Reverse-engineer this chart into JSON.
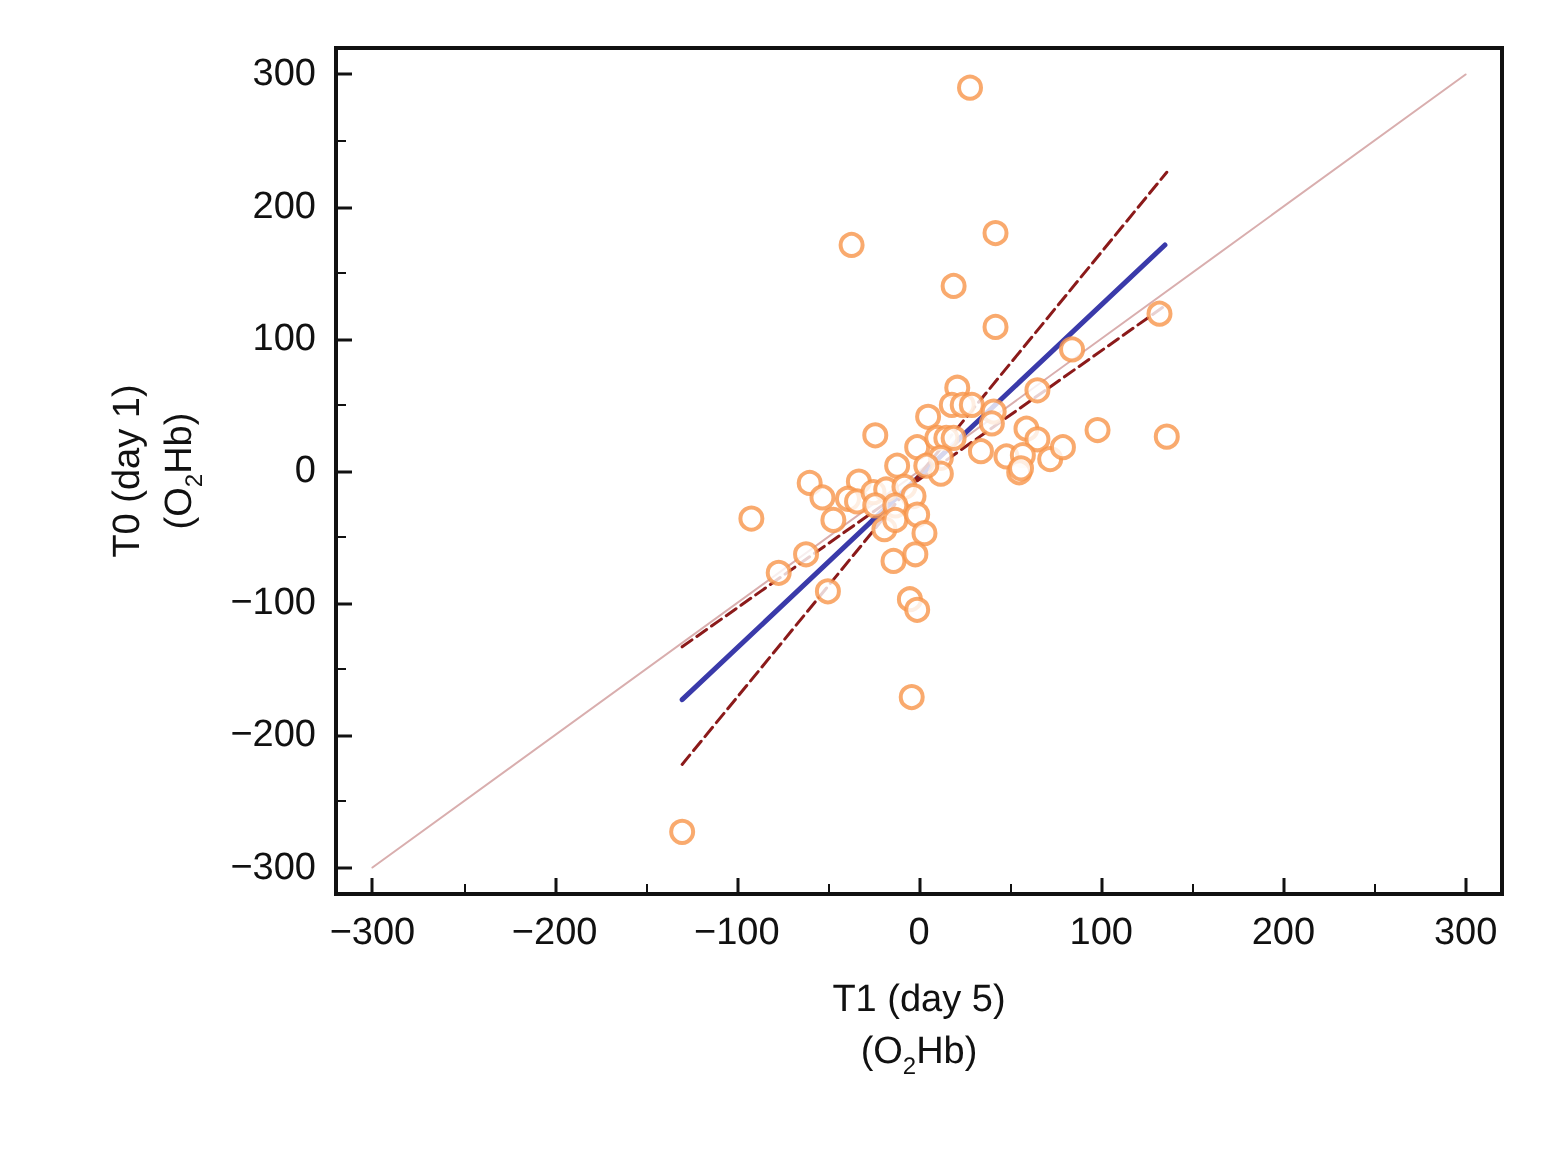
{
  "chart_data": {
    "type": "scatter",
    "xlabel": "T1 (day 5)\n(O$_{2}$Hb)",
    "ylabel": "T0 (day 1)\n(O$_{2}$Hb)",
    "xlim": [
      -320,
      320
    ],
    "ylim": [
      -320,
      320
    ],
    "xticks": [
      -300,
      -200,
      -100,
      0,
      100,
      200,
      300
    ],
    "yticks": [
      -300,
      -200,
      -100,
      0,
      100,
      200,
      300
    ],
    "grid": false,
    "series": [
      {
        "type": "line",
        "color": "#d9aeae",
        "line_style": "solid",
        "marker": "none",
        "x": [
          -300,
          300
        ],
        "values": [
          -300,
          300
        ]
      },
      {
        "color": "#f7954a",
        "marker": "circle",
        "x": [
          28,
          -37,
          42,
          19,
          42,
          132,
          84,
          65,
          21,
          18,
          24,
          29,
          5,
          41,
          59,
          98,
          136,
          -24,
          -1,
          10,
          15,
          19,
          34,
          40,
          65,
          48,
          57,
          72,
          79,
          55,
          56,
          12,
          12,
          4,
          -12,
          -33,
          -60,
          -53,
          -39,
          -34,
          -25,
          -18,
          -8,
          -3,
          -24,
          -13,
          -92,
          -47,
          -19,
          -13,
          -1,
          3,
          -62,
          -77,
          -14,
          -2,
          -50,
          -5,
          -1,
          -4,
          -130
        ],
        "values": [
          290,
          171,
          180,
          140,
          109,
          119,
          92,
          61,
          63,
          50,
          50,
          50,
          41,
          45,
          32,
          31,
          26,
          27,
          18,
          25,
          25,
          25,
          15,
          36,
          24,
          11,
          12,
          9,
          18,
          -1,
          2,
          10,
          -2,
          4,
          4,
          -8,
          -9,
          -20,
          -21,
          -23,
          -16,
          -14,
          -12,
          -19,
          -26,
          -26,
          -36,
          -37,
          -44,
          -37,
          -33,
          -47,
          -63,
          -77,
          -68,
          -63,
          -91,
          -97,
          -105,
          -171,
          -273
        ]
      },
      {
        "type": "line",
        "color": "#3a3aaa",
        "line_style": "solid",
        "marker": "none",
        "x": [
          -130,
          135
        ],
        "values": [
          -173,
          171
        ]
      },
      {
        "type": "line",
        "color": "#8b1a1a",
        "line_style": "dashed",
        "marker": "none",
        "x": [
          -130,
          136
        ],
        "values": [
          -222,
          226
        ]
      },
      {
        "type": "line",
        "color": "#8b1a1a",
        "line_style": "dashed",
        "marker": "none",
        "x": [
          -130,
          134
        ],
        "values": [
          -133,
          124
        ]
      }
    ]
  }
}
